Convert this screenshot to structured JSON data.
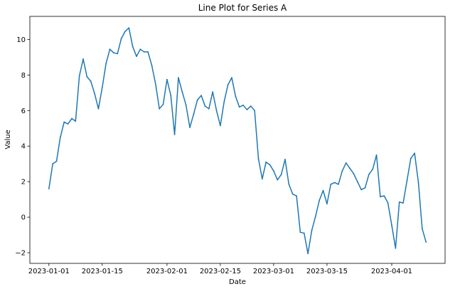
{
  "chart_data": {
    "type": "line",
    "title": "Line Plot for Series A",
    "xlabel": "Date",
    "ylabel": "Value",
    "x_start": "2023-01-01",
    "x_step_days": 1,
    "xlim": [
      "2022-12-27",
      "2023-04-15"
    ],
    "ylim": [
      -2.6,
      11.3
    ],
    "x_ticks": [
      "2023-01-01",
      "2023-01-15",
      "2023-02-01",
      "2023-02-15",
      "2023-03-01",
      "2023-03-15",
      "2023-04-01"
    ],
    "y_ticks": [
      -2,
      0,
      2,
      4,
      6,
      8,
      10
    ],
    "grid": false,
    "legend": "none",
    "series": [
      {
        "color": "#1f77b4",
        "values": [
          1.6,
          3.0,
          3.15,
          4.5,
          5.35,
          5.25,
          5.55,
          5.4,
          7.95,
          8.9,
          7.9,
          7.65,
          6.95,
          6.1,
          7.3,
          8.65,
          9.45,
          9.25,
          9.2,
          10.05,
          10.45,
          10.65,
          9.6,
          9.05,
          9.45,
          9.3,
          9.3,
          8.55,
          7.5,
          6.1,
          6.35,
          7.75,
          6.85,
          4.65,
          7.85,
          7.05,
          6.3,
          5.05,
          5.8,
          6.6,
          6.85,
          6.25,
          6.1,
          7.05,
          6.0,
          5.15,
          6.5,
          7.45,
          7.85,
          6.8,
          6.2,
          6.3,
          6.05,
          6.25,
          6.0,
          3.3,
          2.15,
          3.1,
          2.95,
          2.6,
          2.1,
          2.4,
          3.25,
          1.85,
          1.3,
          1.2,
          -0.85,
          -0.9,
          -2.05,
          -0.75,
          0.05,
          0.95,
          1.5,
          0.75,
          1.85,
          1.95,
          1.85,
          2.6,
          3.05,
          2.75,
          2.45,
          2.0,
          1.55,
          1.65,
          2.4,
          2.7,
          3.5,
          1.15,
          1.2,
          0.8,
          -0.45,
          -1.75,
          0.85,
          0.8,
          2.05,
          3.3,
          3.6,
          1.95,
          -0.65,
          -1.4
        ]
      }
    ]
  }
}
